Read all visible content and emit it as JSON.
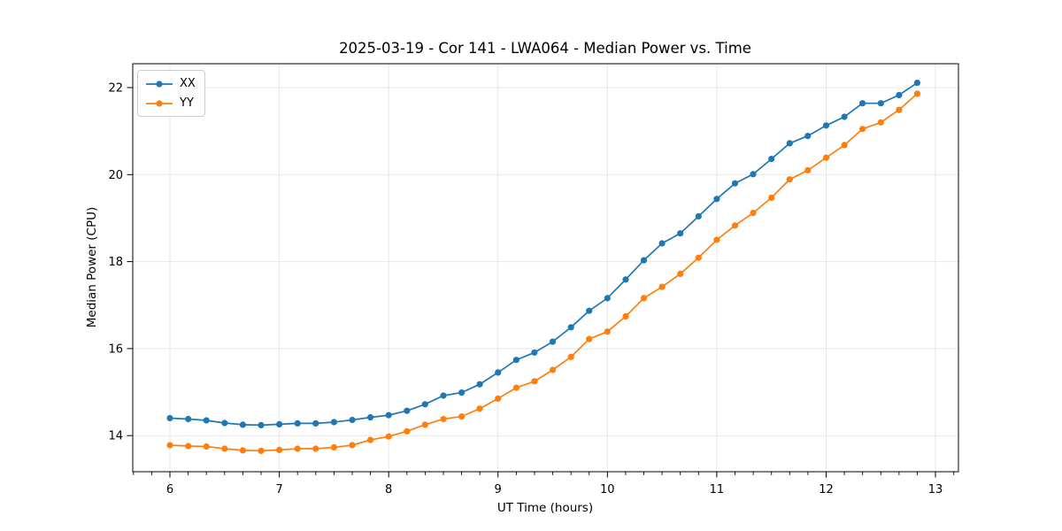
{
  "figure": {
    "title": "2025-03-19 - Cor 141 - LWA064 - Median Power vs. Time"
  },
  "chart_data": {
    "type": "line",
    "title": "2025-03-19 - Cor 141 - LWA064 - Median Power vs. Time",
    "xlabel": "UT Time (hours)",
    "ylabel": "Median Power (CPU)",
    "xlim": [
      5.66,
      13.21
    ],
    "ylim": [
      13.17,
      22.55
    ],
    "x_major_ticks": [
      6,
      7,
      8,
      9,
      10,
      11,
      12,
      13
    ],
    "x_minor_tick_step": 0.16667,
    "y_major_ticks": [
      14,
      16,
      18,
      20,
      22
    ],
    "grid": true,
    "legend_position": "upper-left",
    "marker": "circle",
    "x": [
      6.0,
      6.167,
      6.333,
      6.5,
      6.667,
      6.833,
      7.0,
      7.167,
      7.333,
      7.5,
      7.667,
      7.833,
      8.0,
      8.167,
      8.333,
      8.5,
      8.667,
      8.833,
      9.0,
      9.167,
      9.333,
      9.5,
      9.667,
      9.833,
      10.0,
      10.167,
      10.333,
      10.5,
      10.667,
      10.833,
      11.0,
      11.167,
      11.333,
      11.5,
      11.667,
      11.833,
      12.0,
      12.167,
      12.333,
      12.5,
      12.667,
      12.833
    ],
    "series": [
      {
        "name": "XX",
        "color": "#1f77b4",
        "values": [
          14.4,
          14.38,
          14.35,
          14.29,
          14.25,
          14.24,
          14.26,
          14.28,
          14.28,
          14.31,
          14.36,
          14.42,
          14.47,
          14.57,
          14.72,
          14.92,
          14.99,
          15.18,
          15.45,
          15.74,
          15.91,
          16.16,
          16.49,
          16.87,
          17.16,
          17.59,
          18.03,
          18.42,
          18.65,
          19.04,
          19.44,
          19.8,
          20.01,
          20.36,
          20.72,
          20.89,
          21.13,
          21.33,
          21.64,
          21.64,
          21.83,
          22.11
        ]
      },
      {
        "name": "YY",
        "color": "#ff7f0e",
        "values": [
          13.78,
          13.76,
          13.75,
          13.7,
          13.66,
          13.65,
          13.67,
          13.7,
          13.7,
          13.73,
          13.78,
          13.9,
          13.98,
          14.1,
          14.25,
          14.38,
          14.44,
          14.62,
          14.85,
          15.1,
          15.25,
          15.51,
          15.81,
          16.22,
          16.39,
          16.74,
          17.16,
          17.42,
          17.72,
          18.09,
          18.5,
          18.83,
          19.12,
          19.47,
          19.89,
          20.1,
          20.39,
          20.68,
          21.05,
          21.2,
          21.49,
          21.86
        ]
      }
    ]
  }
}
